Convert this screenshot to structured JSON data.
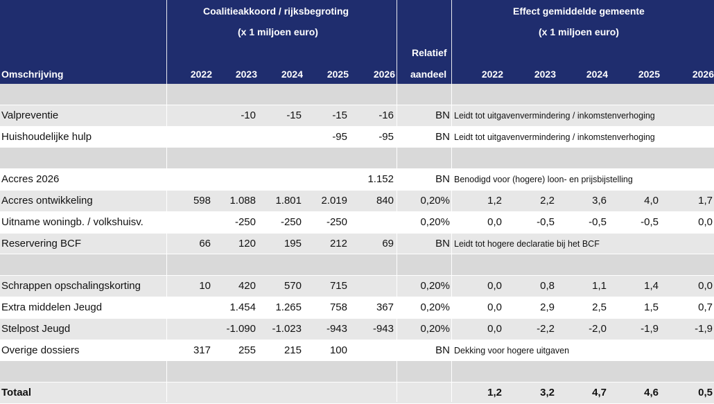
{
  "header": {
    "group1_line1": "Coalitieakkoord / rijksbegroting",
    "group1_line2": "(x 1 miljoen euro)",
    "group2_line1": "Effect gemiddelde gemeente",
    "group2_line2": "(x 1 miljoen euro)",
    "col_desc": "Omschrijving",
    "years_left": [
      "2022",
      "2023",
      "2024",
      "2025",
      "2026"
    ],
    "rel_line1": "Relatief",
    "rel_line2": "aandeel",
    "years_right": [
      "2022",
      "2023",
      "2024",
      "2025",
      "2026"
    ]
  },
  "rows": [
    {
      "type": "spacer",
      "desc": "",
      "v": [
        "",
        "",
        "",
        "",
        ""
      ],
      "rel": "",
      "note": "",
      "e": [
        "",
        "",
        "",
        "",
        ""
      ]
    },
    {
      "type": "data",
      "desc": "Valpreventie",
      "v": [
        "",
        "-10",
        "-15",
        "-15",
        "-16"
      ],
      "rel": "BN",
      "note": "Leidt tot uitgavenvermindering / inkomstenverhoging",
      "e": [
        "",
        "",
        "",
        "",
        ""
      ]
    },
    {
      "type": "data",
      "desc": "Huishoudelijke hulp",
      "v": [
        "",
        "",
        "",
        "-95",
        "-95"
      ],
      "rel": "BN",
      "note": "Leidt tot uitgavenvermindering / inkomstenverhoging",
      "e": [
        "",
        "",
        "",
        "",
        ""
      ]
    },
    {
      "type": "spacer",
      "desc": "",
      "v": [
        "",
        "",
        "",
        "",
        ""
      ],
      "rel": "",
      "note": "",
      "e": [
        "",
        "",
        "",
        "",
        ""
      ]
    },
    {
      "type": "data",
      "desc": "Accres 2026",
      "v": [
        "",
        "",
        "",
        "",
        "1.152"
      ],
      "rel": "BN",
      "note": "Benodigd voor (hogere) loon- en prijsbijstelling",
      "e": [
        "",
        "",
        "",
        "",
        ""
      ]
    },
    {
      "type": "data",
      "desc": "Accres ontwikkeling",
      "v": [
        "598",
        "1.088",
        "1.801",
        "2.019",
        "840"
      ],
      "rel": "0,20%",
      "note": "",
      "e": [
        "1,2",
        "2,2",
        "3,6",
        "4,0",
        "1,7"
      ]
    },
    {
      "type": "data",
      "desc": "Uitname woningb. / volkshuisv.",
      "v": [
        "",
        "-250",
        "-250",
        "-250",
        ""
      ],
      "rel": "0,20%",
      "note": "",
      "e": [
        "0,0",
        "-0,5",
        "-0,5",
        "-0,5",
        "0,0"
      ]
    },
    {
      "type": "data",
      "desc": "Reservering BCF",
      "v": [
        "66",
        "120",
        "195",
        "212",
        "69"
      ],
      "rel": "BN",
      "note": "Leidt tot hogere declaratie bij het BCF",
      "e": [
        "",
        "",
        "",
        "",
        ""
      ]
    },
    {
      "type": "spacer",
      "desc": "",
      "v": [
        "",
        "",
        "",
        "",
        ""
      ],
      "rel": "",
      "note": "",
      "e": [
        "",
        "",
        "",
        "",
        ""
      ]
    },
    {
      "type": "data",
      "desc": "Schrappen opschalingskorting",
      "v": [
        "10",
        "420",
        "570",
        "715",
        ""
      ],
      "rel": "0,20%",
      "note": "",
      "e": [
        "0,0",
        "0,8",
        "1,1",
        "1,4",
        "0,0"
      ]
    },
    {
      "type": "data",
      "desc": "Extra middelen Jeugd",
      "v": [
        "",
        "1.454",
        "1.265",
        "758",
        "367"
      ],
      "rel": "0,20%",
      "note": "",
      "e": [
        "0,0",
        "2,9",
        "2,5",
        "1,5",
        "0,7"
      ]
    },
    {
      "type": "data",
      "desc": "Stelpost Jeugd",
      "v": [
        "",
        "-1.090",
        "-1.023",
        "-943",
        "-943"
      ],
      "rel": "0,20%",
      "note": "",
      "e": [
        "0,0",
        "-2,2",
        "-2,0",
        "-1,9",
        "-1,9"
      ]
    },
    {
      "type": "data",
      "desc": "Overige dossiers",
      "v": [
        "317",
        "255",
        "215",
        "100",
        ""
      ],
      "rel": "BN",
      "note": "Dekking voor hogere uitgaven",
      "e": [
        "",
        "",
        "",
        "",
        ""
      ]
    },
    {
      "type": "spacer",
      "desc": "",
      "v": [
        "",
        "",
        "",
        "",
        ""
      ],
      "rel": "",
      "note": "",
      "e": [
        "",
        "",
        "",
        "",
        ""
      ]
    },
    {
      "type": "total",
      "desc": "Totaal",
      "v": [
        "",
        "",
        "",
        "",
        ""
      ],
      "rel": "",
      "note": "",
      "e": [
        "1,2",
        "3,2",
        "4,7",
        "4,6",
        "0,5"
      ]
    }
  ]
}
